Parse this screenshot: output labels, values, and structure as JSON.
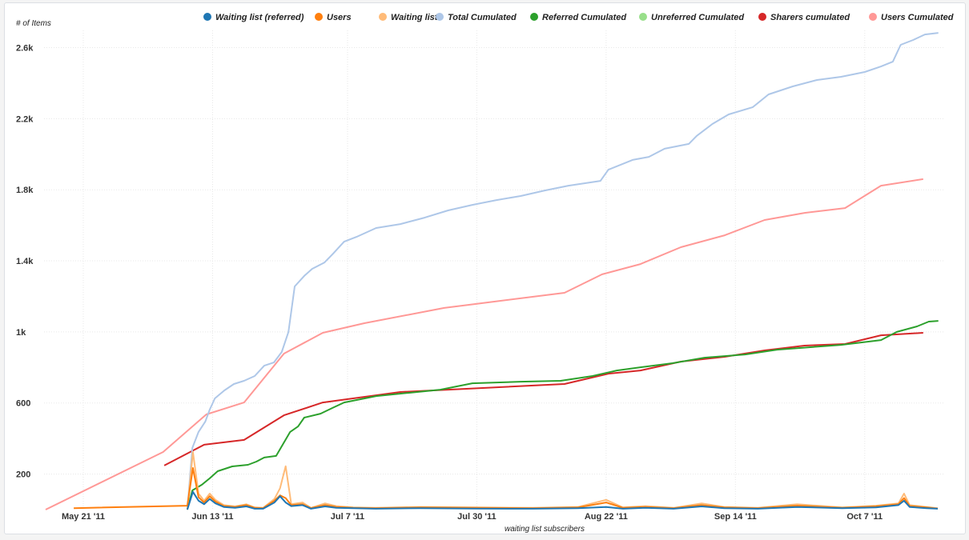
{
  "chart_data": {
    "type": "line",
    "x_origin": "May 21 '11",
    "x_unit": "days since May 21 '11",
    "xlabel": "waiting list subscribers",
    "ylabel": "# of Items",
    "ylim": [
      0,
      2700
    ],
    "xlim": [
      -6.7,
      153
    ],
    "grid": true,
    "legend_position": "top-right",
    "x_ticks": [
      {
        "day": 0,
        "label": "May 21 '11"
      },
      {
        "day": 23,
        "label": "Jun 13 '11"
      },
      {
        "day": 47,
        "label": "Jul 7 '11"
      },
      {
        "day": 70,
        "label": "Jul 30 '11"
      },
      {
        "day": 93,
        "label": "Aug 22 '11"
      },
      {
        "day": 116,
        "label": "Sep 14 '11"
      },
      {
        "day": 139,
        "label": "Oct 7 '11"
      }
    ],
    "y_ticks": [
      {
        "v": 200,
        "label": "200"
      },
      {
        "v": 600,
        "label": "600"
      },
      {
        "v": 1000,
        "label": "1k"
      },
      {
        "v": 1400,
        "label": "1.4k"
      },
      {
        "v": 1800,
        "label": "1.8k"
      },
      {
        "v": 2200,
        "label": "2.2k"
      },
      {
        "v": 2600,
        "label": "2.6k"
      }
    ],
    "series": [
      {
        "name": "Waiting list (referred)",
        "color": "#1f77b4",
        "points": [
          [
            18.5,
            0
          ],
          [
            19.5,
            100
          ],
          [
            20.5,
            50
          ],
          [
            21.5,
            30
          ],
          [
            22.5,
            60
          ],
          [
            23.5,
            35
          ],
          [
            25,
            15
          ],
          [
            27,
            10
          ],
          [
            29,
            18
          ],
          [
            30.5,
            5
          ],
          [
            32,
            5
          ],
          [
            34,
            40
          ],
          [
            35,
            75
          ],
          [
            36,
            40
          ],
          [
            37,
            20
          ],
          [
            39,
            25
          ],
          [
            40.5,
            5
          ],
          [
            43,
            18
          ],
          [
            45,
            10
          ],
          [
            48,
            8
          ],
          [
            52,
            5
          ],
          [
            60,
            8
          ],
          [
            70,
            6
          ],
          [
            80,
            5
          ],
          [
            88,
            8
          ],
          [
            93,
            15
          ],
          [
            96,
            5
          ],
          [
            100,
            10
          ],
          [
            105,
            5
          ],
          [
            110,
            18
          ],
          [
            114,
            8
          ],
          [
            120,
            5
          ],
          [
            127,
            15
          ],
          [
            135,
            8
          ],
          [
            141,
            12
          ],
          [
            145,
            25
          ],
          [
            146,
            50
          ],
          [
            147,
            15
          ],
          [
            150,
            8
          ],
          [
            152,
            5
          ]
        ]
      },
      {
        "name": "Users",
        "color": "#ff7f0e",
        "points": [
          [
            -1.7,
            8
          ],
          [
            18.5,
            22
          ],
          [
            19.5,
            234
          ],
          [
            20.5,
            70
          ],
          [
            21.5,
            40
          ],
          [
            22.5,
            75
          ],
          [
            23.5,
            45
          ],
          [
            25,
            20
          ],
          [
            27,
            15
          ],
          [
            29,
            25
          ],
          [
            30.5,
            10
          ],
          [
            32,
            8
          ],
          [
            34,
            50
          ],
          [
            35,
            80
          ],
          [
            36,
            65
          ],
          [
            37,
            25
          ],
          [
            39,
            30
          ],
          [
            40.5,
            8
          ],
          [
            43,
            25
          ],
          [
            45,
            15
          ],
          [
            48,
            10
          ],
          [
            52,
            8
          ],
          [
            60,
            12
          ],
          [
            70,
            10
          ],
          [
            80,
            8
          ],
          [
            88,
            12
          ],
          [
            93,
            40
          ],
          [
            96,
            10
          ],
          [
            100,
            15
          ],
          [
            105,
            8
          ],
          [
            110,
            25
          ],
          [
            114,
            12
          ],
          [
            120,
            8
          ],
          [
            127,
            22
          ],
          [
            135,
            10
          ],
          [
            141,
            18
          ],
          [
            145,
            30
          ],
          [
            146,
            65
          ],
          [
            147,
            20
          ],
          [
            150,
            12
          ],
          [
            152,
            6
          ]
        ]
      },
      {
        "name": "Waiting list",
        "color": "#ffbb78",
        "points": [
          [
            18.5,
            0
          ],
          [
            19.5,
            324
          ],
          [
            20.5,
            90
          ],
          [
            21.5,
            50
          ],
          [
            22.5,
            90
          ],
          [
            23.5,
            55
          ],
          [
            25,
            25
          ],
          [
            27,
            18
          ],
          [
            29,
            30
          ],
          [
            30.5,
            12
          ],
          [
            32,
            10
          ],
          [
            34,
            60
          ],
          [
            35,
            120
          ],
          [
            36,
            244
          ],
          [
            37,
            30
          ],
          [
            39,
            40
          ],
          [
            40.5,
            10
          ],
          [
            43,
            35
          ],
          [
            45,
            20
          ],
          [
            48,
            12
          ],
          [
            52,
            10
          ],
          [
            60,
            15
          ],
          [
            70,
            12
          ],
          [
            80,
            10
          ],
          [
            88,
            15
          ],
          [
            93,
            55
          ],
          [
            96,
            12
          ],
          [
            100,
            20
          ],
          [
            105,
            10
          ],
          [
            110,
            35
          ],
          [
            114,
            15
          ],
          [
            120,
            10
          ],
          [
            127,
            30
          ],
          [
            135,
            12
          ],
          [
            141,
            22
          ],
          [
            145,
            35
          ],
          [
            146,
            90
          ],
          [
            147,
            25
          ],
          [
            150,
            15
          ],
          [
            152,
            8
          ]
        ]
      },
      {
        "name": "Total Cumulated",
        "color": "#aec7e8",
        "points": [
          [
            18.5,
            0
          ],
          [
            19.4,
            347
          ],
          [
            20.5,
            437
          ],
          [
            21.7,
            495
          ],
          [
            22.5,
            563
          ],
          [
            23.4,
            626
          ],
          [
            25.1,
            671
          ],
          [
            26.8,
            707
          ],
          [
            28.6,
            725
          ],
          [
            30.5,
            752
          ],
          [
            32.2,
            810
          ],
          [
            33.9,
            828
          ],
          [
            35.3,
            887
          ],
          [
            36.5,
            1000
          ],
          [
            37.6,
            1256
          ],
          [
            39.3,
            1315
          ],
          [
            40.7,
            1355
          ],
          [
            42.9,
            1391
          ],
          [
            44.3,
            1436
          ],
          [
            46.4,
            1508
          ],
          [
            48.6,
            1535
          ],
          [
            52.1,
            1585
          ],
          [
            56.4,
            1607
          ],
          [
            60.7,
            1643
          ],
          [
            64.9,
            1684
          ],
          [
            69.2,
            1715
          ],
          [
            73.5,
            1742
          ],
          [
            77.8,
            1765
          ],
          [
            82.1,
            1796
          ],
          [
            86.3,
            1823
          ],
          [
            92,
            1850
          ],
          [
            93.4,
            1913
          ],
          [
            97.7,
            1968
          ],
          [
            100.6,
            1985
          ],
          [
            103.4,
            2031
          ],
          [
            107.7,
            2058
          ],
          [
            109.1,
            2103
          ],
          [
            111.9,
            2170
          ],
          [
            114.8,
            2224
          ],
          [
            119.1,
            2265
          ],
          [
            121.9,
            2337
          ],
          [
            126.2,
            2382
          ],
          [
            130.5,
            2418
          ],
          [
            134.8,
            2436
          ],
          [
            139,
            2463
          ],
          [
            141.9,
            2494
          ],
          [
            144,
            2521
          ],
          [
            145.4,
            2616
          ],
          [
            147.6,
            2643
          ],
          [
            149.7,
            2674
          ],
          [
            152.1,
            2683
          ]
        ]
      },
      {
        "name": "Referred Cumulated",
        "color": "#2ca02c",
        "points": [
          [
            18.5,
            0
          ],
          [
            19.4,
            108
          ],
          [
            21.1,
            140
          ],
          [
            22.5,
            176
          ],
          [
            23.9,
            216
          ],
          [
            26.5,
            243
          ],
          [
            29.3,
            252
          ],
          [
            30.8,
            270
          ],
          [
            32.2,
            293
          ],
          [
            34.3,
            302
          ],
          [
            35.3,
            356
          ],
          [
            36.8,
            437
          ],
          [
            38.2,
            468
          ],
          [
            39.3,
            518
          ],
          [
            42.2,
            540
          ],
          [
            44.3,
            572
          ],
          [
            46.4,
            603
          ],
          [
            52.1,
            639
          ],
          [
            57.8,
            657
          ],
          [
            63.5,
            675
          ],
          [
            69.2,
            711
          ],
          [
            77.8,
            720
          ],
          [
            84.9,
            725
          ],
          [
            90.6,
            752
          ],
          [
            94.9,
            783
          ],
          [
            99.1,
            801
          ],
          [
            104.8,
            824
          ],
          [
            110.5,
            855
          ],
          [
            117.7,
            873
          ],
          [
            123.4,
            900
          ],
          [
            134.8,
            927
          ],
          [
            141.9,
            954
          ],
          [
            144.7,
            1000
          ],
          [
            148.3,
            1031
          ],
          [
            150.4,
            1058
          ],
          [
            152.1,
            1062
          ]
        ]
      },
      {
        "name": "Unreferred Cumulated",
        "color": "#98df8a",
        "points": []
      },
      {
        "name": "Sharers cumulated",
        "color": "#d62728",
        "points": [
          [
            14.4,
            248
          ],
          [
            21.5,
            365
          ],
          [
            28.6,
            392
          ],
          [
            35.7,
            531
          ],
          [
            42.6,
            603
          ],
          [
            56.4,
            662
          ],
          [
            70.7,
            684
          ],
          [
            85.6,
            707
          ],
          [
            93.4,
            765
          ],
          [
            99.1,
            783
          ],
          [
            106.3,
            833
          ],
          [
            114.1,
            860
          ],
          [
            121.2,
            896
          ],
          [
            128.3,
            923
          ],
          [
            135.5,
            932
          ],
          [
            141.9,
            981
          ],
          [
            149.4,
            995
          ]
        ]
      },
      {
        "name": "Users Cumulated",
        "color": "#ff9896",
        "points": [
          [
            -6.7,
            0
          ],
          [
            14.2,
            324
          ],
          [
            21.9,
            536
          ],
          [
            28.6,
            603
          ],
          [
            35.7,
            878
          ],
          [
            42.6,
            995
          ],
          [
            50,
            1049
          ],
          [
            64.2,
            1135
          ],
          [
            85.6,
            1220
          ],
          [
            92.3,
            1324
          ],
          [
            99.1,
            1382
          ],
          [
            106.3,
            1477
          ],
          [
            114.1,
            1544
          ],
          [
            121.2,
            1630
          ],
          [
            128.3,
            1670
          ],
          [
            135.5,
            1697
          ],
          [
            141.9,
            1823
          ],
          [
            149.4,
            1860
          ]
        ]
      }
    ]
  }
}
